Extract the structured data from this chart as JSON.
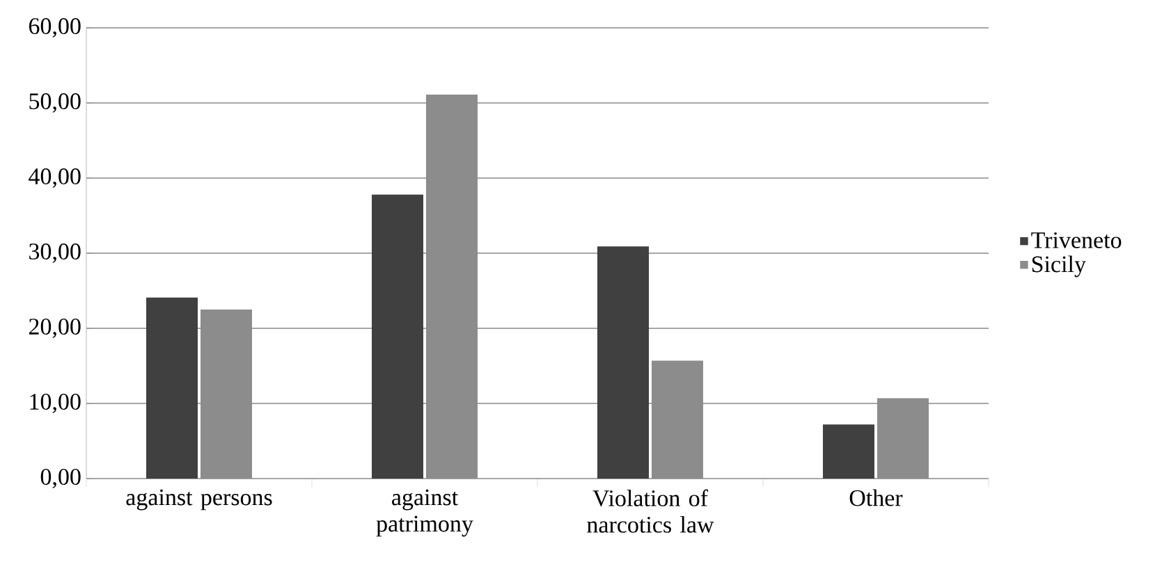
{
  "chart_data": {
    "type": "bar",
    "categories": [
      "against persons",
      "against patrimony",
      "Violation of narcotics law",
      "Other"
    ],
    "series": [
      {
        "name": "Triveneto",
        "color": "#404040",
        "values": [
          24.1,
          37.8,
          30.9,
          7.2
        ]
      },
      {
        "name": "Sicily",
        "color": "#8c8c8c",
        "values": [
          22.5,
          51.1,
          15.7,
          10.7
        ]
      }
    ],
    "ylim": [
      0,
      60
    ],
    "yticks": [
      {
        "value": 0,
        "label": "0,00"
      },
      {
        "value": 10,
        "label": "10,00"
      },
      {
        "value": 20,
        "label": "20,00"
      },
      {
        "value": 30,
        "label": "30,00"
      },
      {
        "value": 40,
        "label": "40,00"
      },
      {
        "value": 50,
        "label": "50,00"
      },
      {
        "value": 60,
        "label": "60,00"
      }
    ],
    "grid": "y",
    "legend": "right"
  }
}
